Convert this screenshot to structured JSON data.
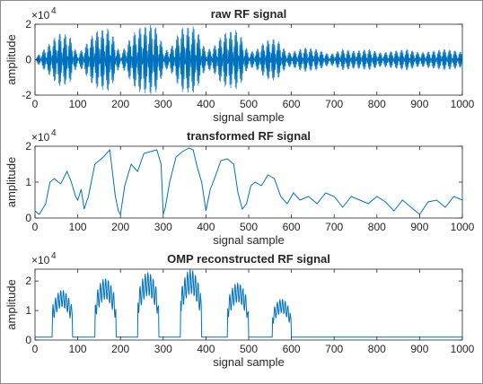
{
  "chart_data": [
    {
      "type": "line",
      "title": "raw RF signal",
      "xlabel": "signal sample",
      "ylabel": "amplitude",
      "xlim": [
        0,
        1000
      ],
      "ylim": [
        -2,
        2
      ],
      "y_multiplier": "x10^4",
      "y_multiplier_base": "×10",
      "y_multiplier_exp": "4",
      "xticks": [
        "0",
        "100",
        "200",
        "300",
        "400",
        "500",
        "600",
        "700",
        "800",
        "900",
        "1000"
      ],
      "yticks": [
        "-2",
        "0",
        "2"
      ],
      "ytick_values": [
        -2,
        0,
        2
      ],
      "color": "#0072bd",
      "envelope": {
        "x": [
          0,
          30,
          55,
          80,
          100,
          120,
          140,
          175,
          200,
          220,
          240,
          280,
          305,
          325,
          340,
          375,
          400,
          420,
          440,
          475,
          500,
          520,
          540,
          565,
          590,
          610,
          630,
          660,
          690,
          720,
          750,
          780,
          810,
          840,
          870,
          900,
          930,
          960,
          990,
          1000
        ],
        "y": [
          0.1,
          0.8,
          1.5,
          1.4,
          0.3,
          0.9,
          1.6,
          1.8,
          0.3,
          1.1,
          1.8,
          2.0,
          0.5,
          0.9,
          1.8,
          1.9,
          0.5,
          0.8,
          1.5,
          1.7,
          0.4,
          0.6,
          1.1,
          1.2,
          0.4,
          0.5,
          0.7,
          0.6,
          0.3,
          0.6,
          0.5,
          0.6,
          0.4,
          0.5,
          0.6,
          0.4,
          0.5,
          0.6,
          0.5,
          0.4
        ]
      }
    },
    {
      "type": "line",
      "title": "transformed RF signal",
      "xlabel": "signal sample",
      "ylabel": "amplitude",
      "xlim": [
        0,
        1000
      ],
      "ylim": [
        0,
        2
      ],
      "y_multiplier": "x10^4",
      "y_multiplier_base": "×10",
      "y_multiplier_exp": "4",
      "xticks": [
        "0",
        "100",
        "200",
        "300",
        "400",
        "500",
        "600",
        "700",
        "800",
        "900",
        "1000"
      ],
      "yticks": [
        "0",
        "1",
        "2"
      ],
      "ytick_values": [
        0,
        1,
        2
      ],
      "color": "#0072bd",
      "x": [
        0,
        10,
        25,
        35,
        45,
        60,
        75,
        85,
        95,
        100,
        108,
        115,
        125,
        140,
        160,
        175,
        188,
        195,
        200,
        210,
        225,
        240,
        255,
        270,
        285,
        295,
        300,
        305,
        315,
        330,
        345,
        360,
        370,
        380,
        390,
        400,
        410,
        420,
        435,
        450,
        465,
        475,
        485,
        495,
        505,
        515,
        530,
        545,
        560,
        575,
        590,
        605,
        620,
        640,
        660,
        680,
        700,
        720,
        740,
        760,
        780,
        800,
        820,
        840,
        860,
        880,
        900,
        920,
        940,
        960,
        980,
        1000
      ],
      "y": [
        0.2,
        0.1,
        0.4,
        1.0,
        1.1,
        0.95,
        1.3,
        1.0,
        0.6,
        0.5,
        0.8,
        0.25,
        0.6,
        1.5,
        1.7,
        1.9,
        0.6,
        0.2,
        0.1,
        0.9,
        1.5,
        1.3,
        1.8,
        1.85,
        1.9,
        1.5,
        0.1,
        0.3,
        1.0,
        1.7,
        1.85,
        1.95,
        1.9,
        1.4,
        1.0,
        0.2,
        0.8,
        1.1,
        1.6,
        1.65,
        1.5,
        0.7,
        0.25,
        0.4,
        0.9,
        1.0,
        0.9,
        1.2,
        1.1,
        0.6,
        0.4,
        0.7,
        0.5,
        0.6,
        0.4,
        0.7,
        0.6,
        0.3,
        0.6,
        0.5,
        0.4,
        0.6,
        0.45,
        0.2,
        0.5,
        0.3,
        0.1,
        0.45,
        0.5,
        0.3,
        0.6,
        0.5
      ]
    },
    {
      "type": "line",
      "title": "OMP reconstructed RF signal",
      "xlabel": "signal sample",
      "ylabel": "amplitude",
      "xlim": [
        0,
        1000
      ],
      "ylim": [
        0,
        2.4
      ],
      "y_multiplier": "x10^4",
      "y_multiplier_base": "×10",
      "y_multiplier_exp": "4",
      "xticks": [
        "0",
        "100",
        "200",
        "300",
        "400",
        "500",
        "600",
        "700",
        "800",
        "900",
        "1000"
      ],
      "yticks": [
        "0",
        "1",
        "2"
      ],
      "ytick_values": [
        0,
        1,
        2
      ],
      "color": "#0072bd",
      "segments": [
        {
          "x0": 40,
          "x1": 88,
          "peak": 1.7
        },
        {
          "x0": 140,
          "x1": 190,
          "peak": 2.1
        },
        {
          "x0": 240,
          "x1": 290,
          "peak": 2.3
        },
        {
          "x0": 340,
          "x1": 390,
          "peak": 2.4
        },
        {
          "x0": 450,
          "x1": 500,
          "peak": 1.95
        },
        {
          "x0": 555,
          "x1": 600,
          "peak": 1.4
        }
      ],
      "baseline": 0.1
    }
  ]
}
